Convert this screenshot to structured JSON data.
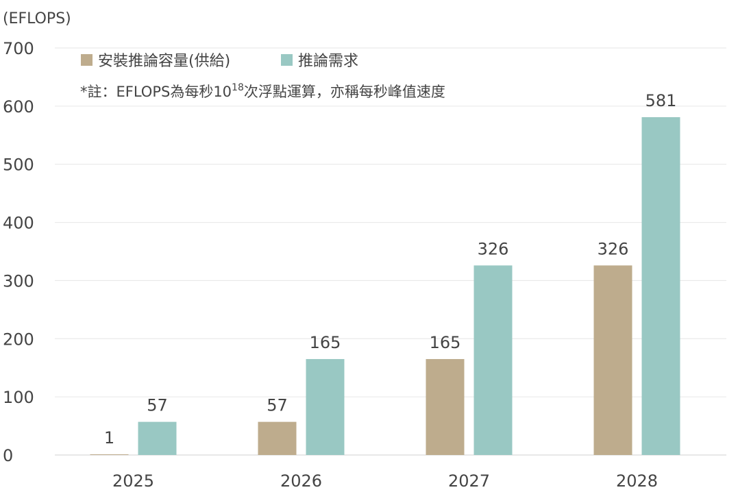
{
  "chart_data": {
    "type": "bar",
    "unit_label": "(EFLOPS)",
    "categories": [
      "2025",
      "2026",
      "2027",
      "2028"
    ],
    "series": [
      {
        "name": "安裝推論容量(供給)",
        "color": "#beac8d",
        "values": [
          1,
          57,
          165,
          326
        ]
      },
      {
        "name": "推論需求",
        "color": "#99c8c3",
        "values": [
          57,
          165,
          326,
          581
        ]
      }
    ],
    "ylim": [
      0,
      700
    ],
    "yticks": [
      0,
      100,
      200,
      300,
      400,
      500,
      600,
      700
    ],
    "grid": true,
    "legend_position": "top-left",
    "note": {
      "prefix": "*註：EFLOPS為每秒10",
      "superscript": "18",
      "suffix": "次浮點運算，亦稱每秒峰值速度"
    }
  }
}
